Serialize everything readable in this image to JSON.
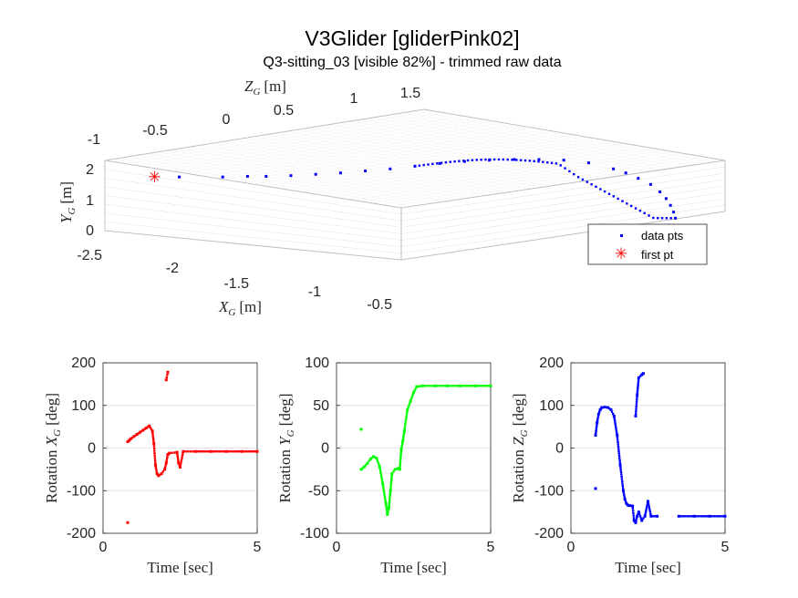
{
  "figure": {
    "title": "V3Glider [gliderPink02]",
    "subtitle": "Q3-sitting_03 [visible 82%] - trimmed raw data"
  },
  "chart_data": [
    {
      "type": "scatter",
      "panel": "3d-trajectory",
      "axes": {
        "x": {
          "label_main": "X",
          "label_sub": "G",
          "label_unit": "[m]",
          "range": [
            -2.5,
            -0.5
          ],
          "ticks": [
            "-2.5",
            "-2",
            "-1.5",
            "-1",
            "-0.5"
          ]
        },
        "y": {
          "label_main": "Y",
          "label_sub": "G",
          "label_unit": "[m]",
          "range": [
            0,
            2
          ],
          "ticks": [
            "0",
            "1",
            "2"
          ]
        },
        "z": {
          "label_main": "Z",
          "label_sub": "G",
          "label_unit": "[m]",
          "range": [
            -1,
            1.5
          ],
          "ticks": [
            "-1",
            "-0.5",
            "0",
            "0.5",
            "1",
            "1.5"
          ]
        }
      },
      "legend": {
        "position": "bottom-right",
        "entries": [
          "data pts",
          "first pt"
        ]
      },
      "series": [
        {
          "name": "data pts",
          "color": "#0000ff",
          "marker": "dot",
          "xz_ratio": [
            0.12,
            0.19,
            0.23,
            0.26,
            0.3,
            0.34,
            0.38,
            0.42,
            0.46,
            0.5,
            0.54,
            0.58,
            0.62,
            0.66,
            0.7,
            0.74,
            0.78,
            0.82,
            0.84,
            0.86,
            0.88,
            0.895,
            0.905,
            0.912,
            0.917,
            0.92
          ],
          "height_ratio": [
            0.66,
            0.66,
            0.67,
            0.67,
            0.68,
            0.7,
            0.72,
            0.75,
            0.78,
            0.82,
            0.86,
            0.89,
            0.91,
            0.92,
            0.92,
            0.91,
            0.87,
            0.78,
            0.72,
            0.64,
            0.55,
            0.44,
            0.34,
            0.24,
            0.14,
            0.05
          ]
        },
        {
          "name": "first pt",
          "color": "#ff0000",
          "marker": "asterisk",
          "xz_ratio": [
            0.08
          ],
          "height_ratio": [
            0.66
          ]
        }
      ]
    },
    {
      "type": "scatter",
      "panel": "rotation-x",
      "xlabel": "Time [sec]",
      "ylabel_main": "Rotation X",
      "ylabel_sub": "G",
      "ylabel_unit": "[deg]",
      "xlim": [
        0,
        5
      ],
      "ylim": [
        -200,
        200
      ],
      "xticks": [
        0,
        5
      ],
      "yticks": [
        -200,
        -100,
        0,
        100,
        200
      ],
      "grid": "y",
      "series": [
        {
          "color": "#ff0000",
          "x": [
            0.8,
            0.85,
            0.9,
            1.0,
            1.1,
            1.2,
            1.3,
            1.4,
            1.5,
            1.6,
            1.65,
            1.7,
            1.75,
            1.8,
            1.9,
            2.0,
            2.05,
            2.1,
            2.15,
            2.4,
            2.45,
            2.5,
            2.6,
            3.0,
            3.5,
            4.0,
            4.5,
            5.0,
            0.8,
            2.05,
            2.1
          ],
          "y": [
            15,
            18,
            22,
            27,
            32,
            37,
            42,
            47,
            52,
            40,
            10,
            -40,
            -60,
            -65,
            -60,
            -50,
            -35,
            -15,
            -12,
            -10,
            -35,
            -45,
            -8,
            -8,
            -8,
            -8,
            -8,
            -8,
            -175,
            160,
            178
          ]
        }
      ]
    },
    {
      "type": "scatter",
      "panel": "rotation-y",
      "xlabel": "Time [sec]",
      "ylabel_main": "Rotation Y",
      "ylabel_sub": "G",
      "ylabel_unit": "[deg]",
      "xlim": [
        0,
        5
      ],
      "ylim": [
        -100,
        100
      ],
      "xticks": [
        0,
        5
      ],
      "yticks": [
        -100,
        -50,
        0,
        50,
        100
      ],
      "grid": "y",
      "series": [
        {
          "color": "#00ff00",
          "x": [
            0.8,
            0.9,
            1.0,
            1.1,
            1.2,
            1.3,
            1.4,
            1.5,
            1.6,
            1.65,
            1.7,
            1.75,
            1.8,
            1.9,
            2.0,
            2.05,
            2.1,
            2.15,
            2.2,
            2.3,
            2.4,
            2.5,
            2.6,
            2.8,
            3.2,
            3.6,
            4.0,
            4.5,
            5.0,
            0.8
          ],
          "y": [
            -25,
            -22,
            -18,
            -13,
            -10,
            -12,
            -22,
            -42,
            -65,
            -78,
            -70,
            -50,
            -30,
            -25,
            -24,
            -25,
            -2,
            8,
            20,
            45,
            55,
            65,
            72,
            73,
            73,
            73,
            73,
            73,
            73,
            22
          ]
        }
      ]
    },
    {
      "type": "scatter",
      "panel": "rotation-z",
      "xlabel": "Time [sec]",
      "ylabel_main": "Rotation Z",
      "ylabel_sub": "G",
      "ylabel_unit": "[deg]",
      "xlim": [
        0,
        5
      ],
      "ylim": [
        -200,
        200
      ],
      "xticks": [
        0,
        5
      ],
      "yticks": [
        -200,
        -100,
        0,
        100,
        200
      ],
      "grid": "y",
      "series": [
        {
          "color": "#0000ff",
          "x": [
            0.8,
            0.85,
            0.9,
            0.95,
            1.0,
            1.1,
            1.2,
            1.3,
            1.4,
            1.5,
            1.6,
            1.7,
            1.75,
            1.8,
            1.85,
            1.9,
            2.0,
            2.05,
            2.1,
            2.15,
            2.2,
            2.3,
            2.4,
            2.5,
            2.6,
            2.8,
            3.5,
            4.0,
            4.5,
            5.0,
            0.8,
            2.1,
            2.15,
            2.2,
            2.3,
            2.35
          ],
          "y": [
            30,
            60,
            80,
            90,
            95,
            96,
            95,
            90,
            75,
            30,
            -40,
            -100,
            -120,
            -130,
            -134,
            -135,
            -136,
            -170,
            -175,
            -160,
            -150,
            -170,
            -160,
            -125,
            -160,
            -160,
            -160,
            -160,
            -160,
            -160,
            -95,
            75,
            125,
            165,
            172,
            175
          ]
        }
      ]
    }
  ]
}
